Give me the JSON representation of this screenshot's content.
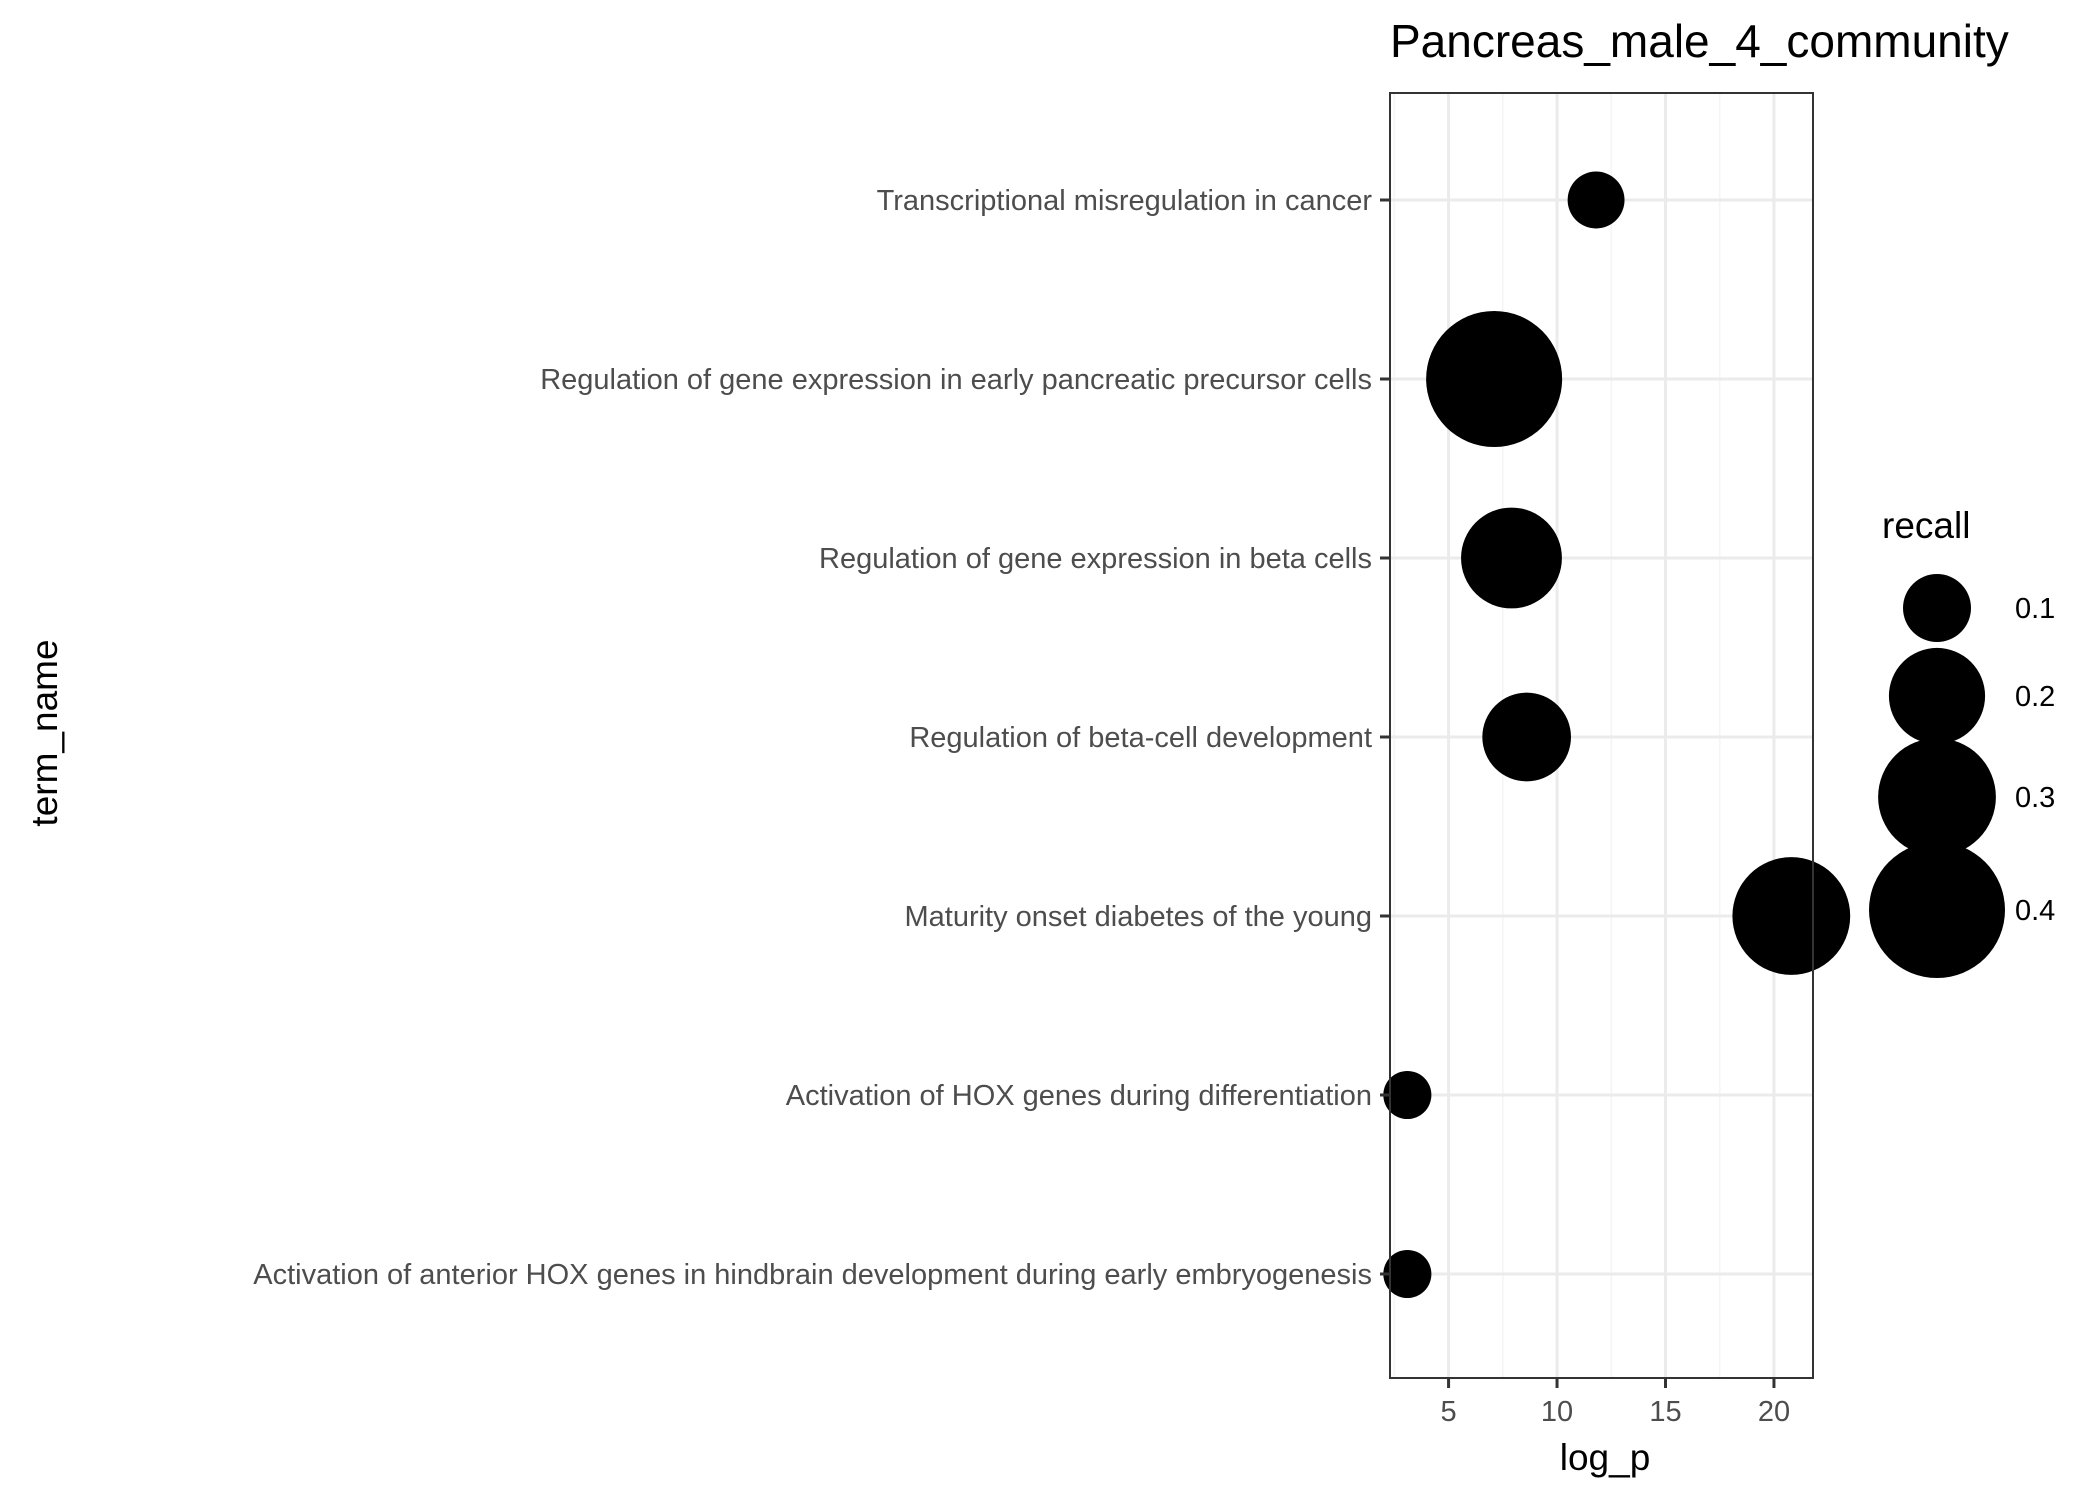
{
  "chart_data": {
    "type": "scatter",
    "title": "Pancreas_male_4_community",
    "xlabel": "log_p",
    "ylabel": "term_name",
    "xlim": [
      2.3,
      21.8
    ],
    "xticks": [
      5,
      10,
      15,
      20
    ],
    "grid": true,
    "legend": {
      "title": "recall",
      "position": "right",
      "entries": [
        {
          "label": "0.1",
          "value": 0.1
        },
        {
          "label": "0.2",
          "value": 0.2
        },
        {
          "label": "0.3",
          "value": 0.3
        },
        {
          "label": "0.4",
          "value": 0.4
        }
      ]
    },
    "categories": [
      "Transcriptional misregulation in cancer",
      "Regulation of gene expression in early pancreatic precursor cells",
      "Regulation of gene expression in beta cells",
      "Regulation of beta-cell development",
      "Maturity onset diabetes of the young",
      "Activation of HOX genes during differentiation",
      "Activation of anterior HOX genes in hindbrain development during early embryogenesis"
    ],
    "points": [
      {
        "term_name": "Transcriptional misregulation in cancer",
        "log_p": 11.8,
        "recall": 0.07
      },
      {
        "term_name": "Regulation of gene expression in early pancreatic precursor cells",
        "log_p": 7.1,
        "recall": 0.4
      },
      {
        "term_name": "Regulation of gene expression in beta cells",
        "log_p": 7.9,
        "recall": 0.22
      },
      {
        "term_name": "Regulation of beta-cell development",
        "log_p": 8.6,
        "recall": 0.17
      },
      {
        "term_name": "Maturity onset diabetes of the young",
        "log_p": 20.8,
        "recall": 0.3
      },
      {
        "term_name": "Activation of HOX genes during differentiation",
        "log_p": 3.1,
        "recall": 0.05
      },
      {
        "term_name": "Activation of anterior HOX genes in hindbrain development during early embryogenesis",
        "log_p": 3.1,
        "recall": 0.05
      }
    ],
    "point_color": "#000000",
    "panel_border_color": "#333333",
    "grid_major_color": "#ebebeb",
    "grid_minor_color": "#f5f5f5"
  }
}
